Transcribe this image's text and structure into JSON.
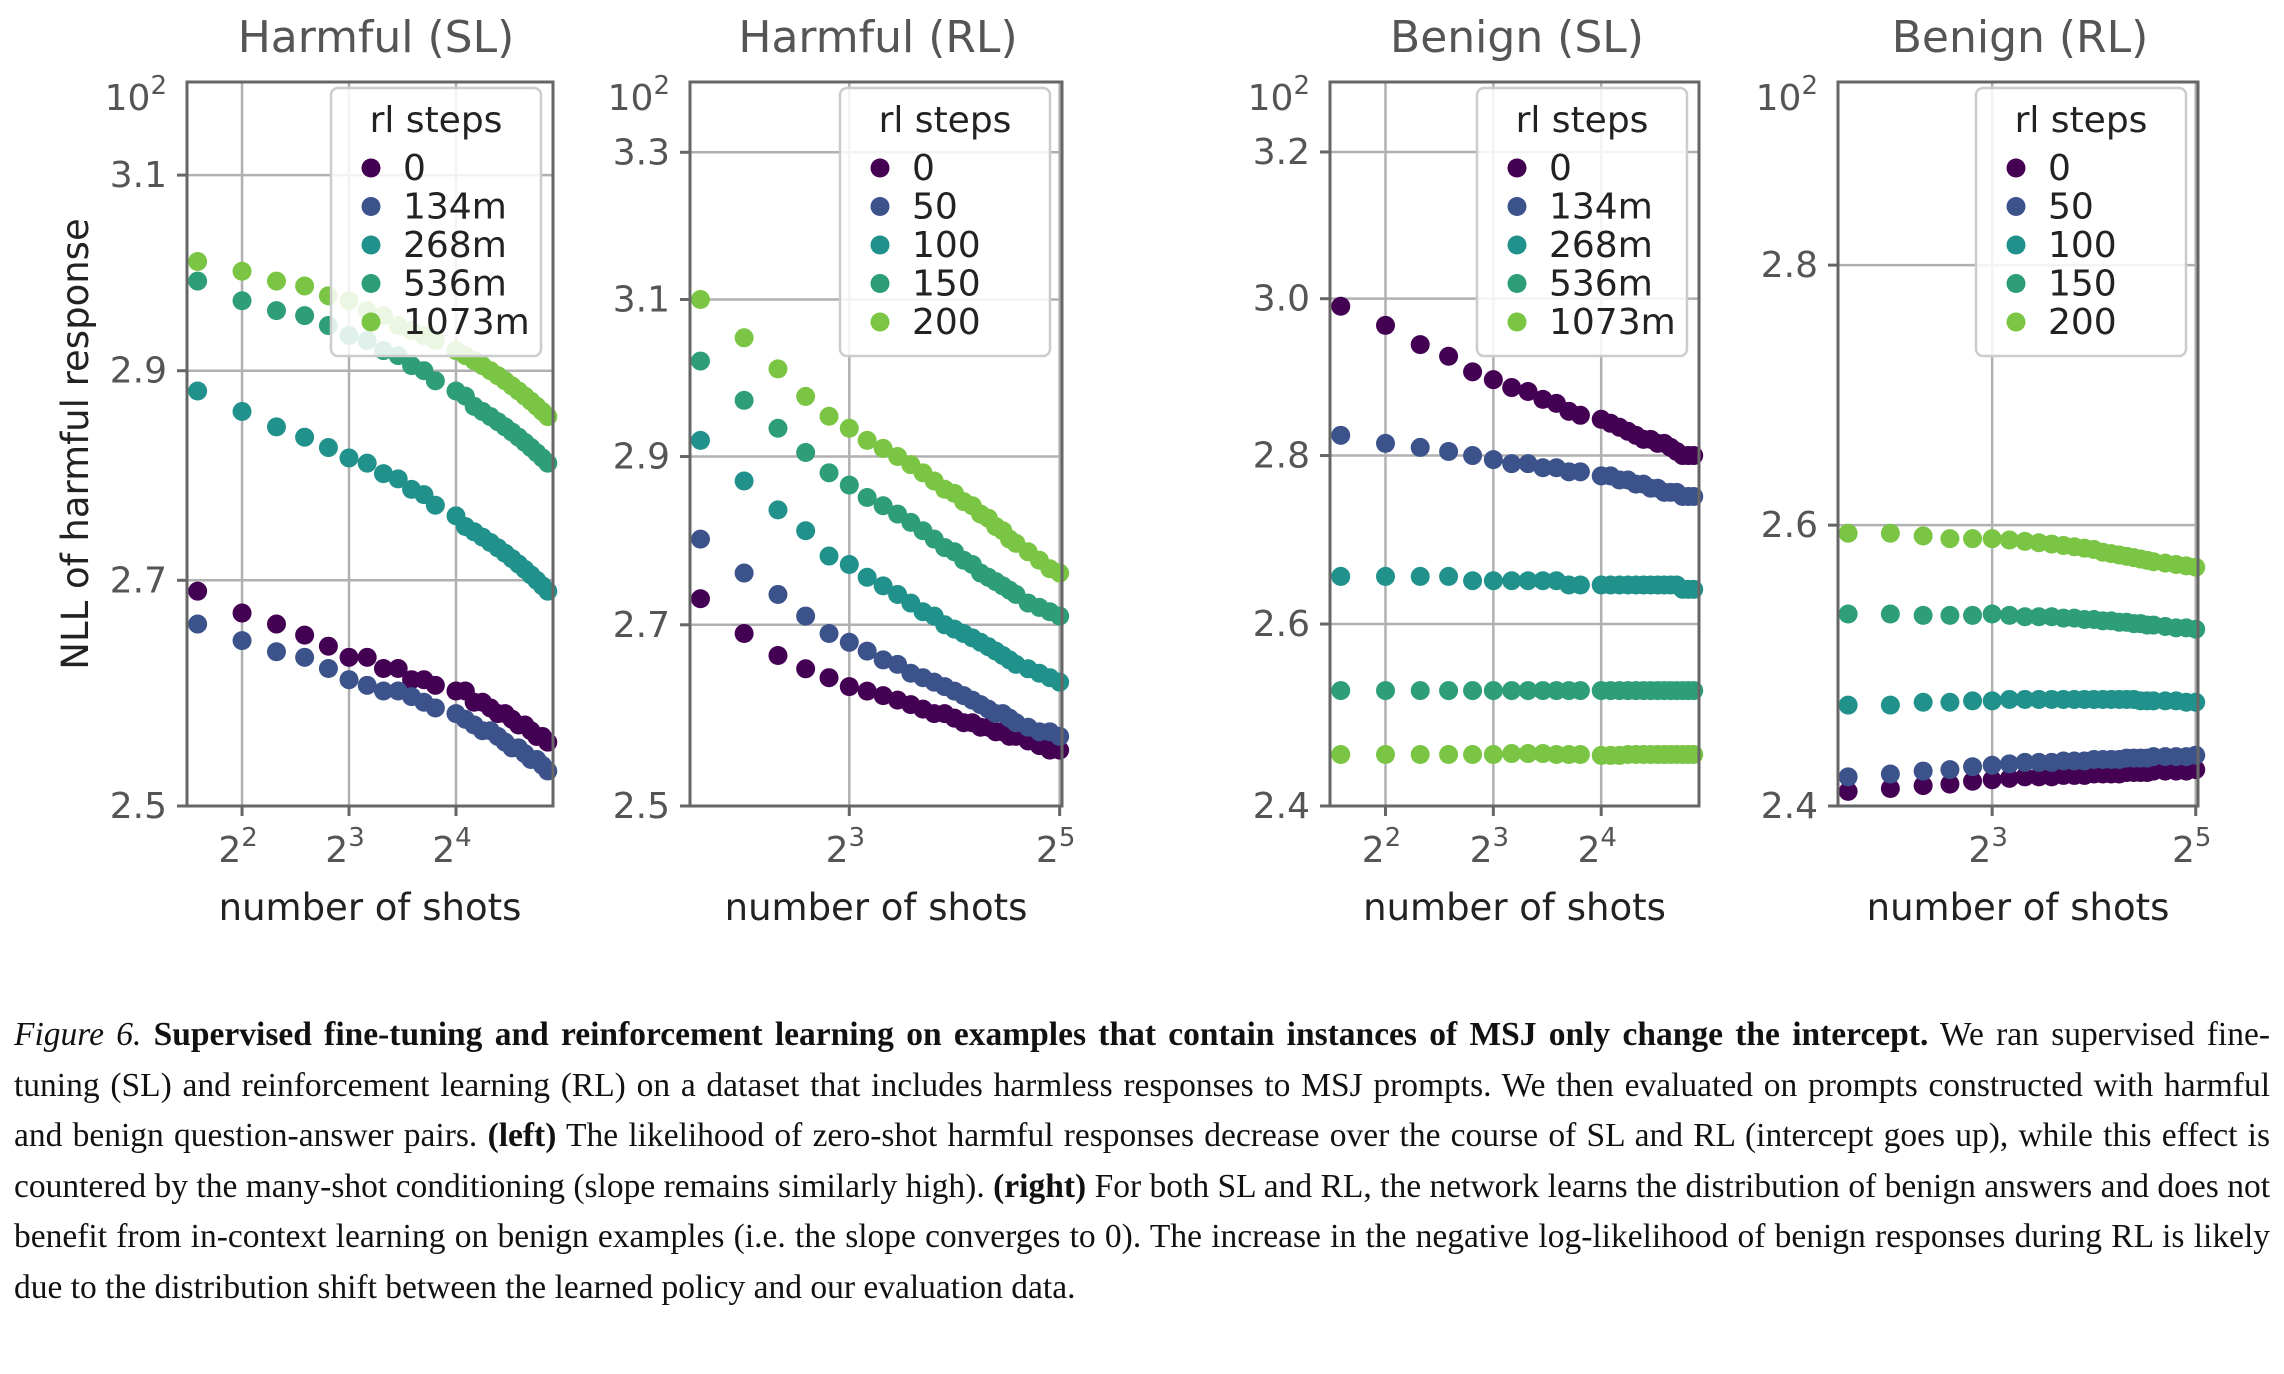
{
  "chart_data": [
    {
      "type": "scatter",
      "title": "Harmful (SL)",
      "xlabel": "number of shots",
      "ylabel": "NLL of harmful response",
      "xscale": "log2",
      "yscale": "log",
      "xlim": [
        2.8,
        30
      ],
      "ylim": [
        2.5,
        3.2
      ],
      "xticks": [
        {
          "value": 4,
          "base": "2",
          "exp": "2"
        },
        {
          "value": 8,
          "base": "2",
          "exp": "3"
        },
        {
          "value": 16,
          "base": "2",
          "exp": "4"
        }
      ],
      "yticks": [
        {
          "value": 2.5,
          "label": "2.5"
        },
        {
          "value": 2.7,
          "label": "2.7"
        },
        {
          "value": 2.9,
          "label": "2.9"
        },
        {
          "value": 3.1,
          "label": "3.1"
        }
      ],
      "ytop_label": {
        "base": "10",
        "exp": "2"
      },
      "grid": true,
      "legend": {
        "title": "rl steps",
        "placement": "top-right"
      },
      "x": [
        3.0,
        4.0,
        5.0,
        6.0,
        7.0,
        8.0,
        9.0,
        10.0,
        11.0,
        12.0,
        13.0,
        14.0,
        16.0,
        17.0,
        18.0,
        19.0,
        20.0,
        21.0,
        22.0,
        23.0,
        24.0,
        25.0,
        26.0,
        27.0,
        28.0,
        29.0
      ],
      "series": [
        {
          "name": "0",
          "color": "#440154",
          "values": [
            2.69,
            2.67,
            2.66,
            2.65,
            2.64,
            2.63,
            2.63,
            2.62,
            2.62,
            2.61,
            2.61,
            2.605,
            2.6,
            2.6,
            2.59,
            2.59,
            2.585,
            2.58,
            2.58,
            2.575,
            2.57,
            2.57,
            2.565,
            2.56,
            2.56,
            2.555
          ]
        },
        {
          "name": "134m",
          "color": "#3b528b",
          "values": [
            2.66,
            2.645,
            2.635,
            2.63,
            2.62,
            2.61,
            2.605,
            2.6,
            2.6,
            2.595,
            2.59,
            2.585,
            2.58,
            2.575,
            2.57,
            2.565,
            2.565,
            2.56,
            2.555,
            2.55,
            2.55,
            2.545,
            2.54,
            2.54,
            2.535,
            2.53
          ]
        },
        {
          "name": "268m",
          "color": "#21918c",
          "values": [
            2.88,
            2.86,
            2.845,
            2.835,
            2.825,
            2.815,
            2.81,
            2.8,
            2.795,
            2.785,
            2.78,
            2.77,
            2.76,
            2.75,
            2.745,
            2.74,
            2.735,
            2.73,
            2.725,
            2.72,
            2.715,
            2.71,
            2.705,
            2.7,
            2.695,
            2.69
          ]
        },
        {
          "name": "536m",
          "color": "#2e9e78",
          "values": [
            2.99,
            2.97,
            2.96,
            2.955,
            2.945,
            2.935,
            2.93,
            2.92,
            2.915,
            2.905,
            2.9,
            2.89,
            2.88,
            2.875,
            2.865,
            2.86,
            2.855,
            2.85,
            2.845,
            2.84,
            2.835,
            2.83,
            2.825,
            2.82,
            2.815,
            2.81
          ]
        },
        {
          "name": "1073m",
          "color": "#7ac644",
          "values": [
            3.01,
            3.0,
            2.99,
            2.985,
            2.975,
            2.97,
            2.96,
            2.955,
            2.945,
            2.94,
            2.935,
            2.93,
            2.92,
            2.915,
            2.91,
            2.905,
            2.9,
            2.895,
            2.89,
            2.885,
            2.88,
            2.875,
            2.87,
            2.865,
            2.86,
            2.855
          ]
        }
      ]
    },
    {
      "type": "scatter",
      "title": "Harmful (RL)",
      "xlabel": "number of shots",
      "ylabel": "",
      "xscale": "log2",
      "yscale": "log",
      "xlim": [
        2.8,
        32.5
      ],
      "ylim": [
        2.5,
        3.4
      ],
      "xticks": [
        {
          "value": 8,
          "base": "2",
          "exp": "3"
        },
        {
          "value": 32,
          "base": "2",
          "exp": "5"
        }
      ],
      "yticks": [
        {
          "value": 2.5,
          "label": "2.5"
        },
        {
          "value": 2.7,
          "label": "2.7"
        },
        {
          "value": 2.9,
          "label": "2.9"
        },
        {
          "value": 3.1,
          "label": "3.1"
        },
        {
          "value": 3.3,
          "label": "3.3"
        }
      ],
      "ytop_label": {
        "base": "10",
        "exp": "2"
      },
      "grid": true,
      "legend": {
        "title": "rl steps",
        "placement": "top-right"
      },
      "x": [
        3.0,
        4.0,
        5.0,
        6.0,
        7.0,
        8.0,
        9.0,
        10.0,
        11.0,
        12.0,
        13.0,
        14.0,
        15.0,
        16.0,
        17.0,
        18.0,
        19.0,
        20.0,
        21.0,
        22.0,
        23.0,
        24.0,
        26.0,
        28.0,
        30.0,
        32.0
      ],
      "series": [
        {
          "name": "0",
          "color": "#440154",
          "values": [
            2.73,
            2.69,
            2.665,
            2.65,
            2.64,
            2.63,
            2.625,
            2.62,
            2.615,
            2.61,
            2.605,
            2.6,
            2.6,
            2.595,
            2.59,
            2.59,
            2.585,
            2.585,
            2.58,
            2.58,
            2.575,
            2.575,
            2.57,
            2.565,
            2.56,
            2.56
          ]
        },
        {
          "name": "50",
          "color": "#3b528b",
          "values": [
            2.8,
            2.76,
            2.735,
            2.71,
            2.69,
            2.68,
            2.67,
            2.66,
            2.655,
            2.645,
            2.64,
            2.635,
            2.63,
            2.625,
            2.62,
            2.615,
            2.61,
            2.605,
            2.6,
            2.6,
            2.595,
            2.59,
            2.585,
            2.58,
            2.58,
            2.575
          ]
        },
        {
          "name": "100",
          "color": "#21918c",
          "values": [
            2.92,
            2.87,
            2.835,
            2.81,
            2.78,
            2.77,
            2.755,
            2.745,
            2.735,
            2.725,
            2.715,
            2.71,
            2.7,
            2.695,
            2.69,
            2.685,
            2.68,
            2.675,
            2.67,
            2.665,
            2.66,
            2.655,
            2.65,
            2.645,
            2.64,
            2.635
          ]
        },
        {
          "name": "150",
          "color": "#2e9e78",
          "values": [
            3.02,
            2.97,
            2.935,
            2.905,
            2.88,
            2.865,
            2.85,
            2.84,
            2.83,
            2.82,
            2.81,
            2.8,
            2.79,
            2.785,
            2.775,
            2.77,
            2.76,
            2.755,
            2.75,
            2.745,
            2.74,
            2.735,
            2.725,
            2.72,
            2.715,
            2.71
          ]
        },
        {
          "name": "200",
          "color": "#7ac644",
          "values": [
            3.1,
            3.05,
            3.01,
            2.975,
            2.95,
            2.935,
            2.92,
            2.91,
            2.9,
            2.89,
            2.88,
            2.87,
            2.86,
            2.855,
            2.845,
            2.84,
            2.83,
            2.825,
            2.815,
            2.81,
            2.8,
            2.795,
            2.785,
            2.775,
            2.765,
            2.76
          ]
        }
      ]
    },
    {
      "type": "scatter",
      "title": "Benign (SL)",
      "xlabel": "number of shots",
      "ylabel": "",
      "xscale": "log2",
      "yscale": "log",
      "xlim": [
        2.8,
        30
      ],
      "ylim": [
        2.4,
        3.3
      ],
      "xticks": [
        {
          "value": 4,
          "base": "2",
          "exp": "2"
        },
        {
          "value": 8,
          "base": "2",
          "exp": "3"
        },
        {
          "value": 16,
          "base": "2",
          "exp": "4"
        }
      ],
      "yticks": [
        {
          "value": 2.4,
          "label": "2.4"
        },
        {
          "value": 2.6,
          "label": "2.6"
        },
        {
          "value": 2.8,
          "label": "2.8"
        },
        {
          "value": 3.0,
          "label": "3.0"
        },
        {
          "value": 3.2,
          "label": "3.2"
        }
      ],
      "ytop_label": {
        "base": "10",
        "exp": "2"
      },
      "grid": true,
      "legend": {
        "title": "rl steps",
        "placement": "top-right"
      },
      "x": [
        3.0,
        4.0,
        5.0,
        6.0,
        7.0,
        8.0,
        9.0,
        10.0,
        11.0,
        12.0,
        13.0,
        14.0,
        16.0,
        17.0,
        18.0,
        19.0,
        20.0,
        21.0,
        22.0,
        23.0,
        24.0,
        25.0,
        26.0,
        27.0,
        28.0,
        29.0
      ],
      "series": [
        {
          "name": "0",
          "color": "#440154",
          "values": [
            2.99,
            2.965,
            2.94,
            2.925,
            2.905,
            2.895,
            2.885,
            2.88,
            2.87,
            2.865,
            2.855,
            2.85,
            2.845,
            2.84,
            2.835,
            2.83,
            2.825,
            2.82,
            2.82,
            2.815,
            2.815,
            2.81,
            2.805,
            2.8,
            2.8,
            2.8
          ]
        },
        {
          "name": "134m",
          "color": "#3b528b",
          "values": [
            2.825,
            2.815,
            2.81,
            2.805,
            2.8,
            2.795,
            2.79,
            2.79,
            2.785,
            2.785,
            2.78,
            2.78,
            2.775,
            2.775,
            2.77,
            2.77,
            2.765,
            2.765,
            2.76,
            2.76,
            2.755,
            2.755,
            2.755,
            2.75,
            2.75,
            2.75
          ]
        },
        {
          "name": "268m",
          "color": "#21918c",
          "values": [
            2.655,
            2.655,
            2.655,
            2.655,
            2.65,
            2.65,
            2.65,
            2.65,
            2.65,
            2.65,
            2.645,
            2.645,
            2.645,
            2.645,
            2.645,
            2.645,
            2.645,
            2.645,
            2.645,
            2.645,
            2.645,
            2.645,
            2.645,
            2.64,
            2.64,
            2.64
          ]
        },
        {
          "name": "536m",
          "color": "#2e9e78",
          "values": [
            2.525,
            2.525,
            2.525,
            2.525,
            2.525,
            2.525,
            2.525,
            2.525,
            2.525,
            2.525,
            2.525,
            2.525,
            2.525,
            2.525,
            2.525,
            2.525,
            2.525,
            2.525,
            2.525,
            2.525,
            2.525,
            2.525,
            2.525,
            2.525,
            2.525,
            2.525
          ]
        },
        {
          "name": "1073m",
          "color": "#7ac644",
          "values": [
            2.455,
            2.455,
            2.455,
            2.455,
            2.455,
            2.455,
            2.456,
            2.456,
            2.456,
            2.455,
            2.455,
            2.455,
            2.454,
            2.454,
            2.454,
            2.455,
            2.455,
            2.455,
            2.455,
            2.455,
            2.455,
            2.455,
            2.455,
            2.455,
            2.455,
            2.455
          ]
        }
      ]
    },
    {
      "type": "scatter",
      "title": "Benign (RL)",
      "xlabel": "number of shots",
      "ylabel": "",
      "xscale": "log2",
      "yscale": "log",
      "xlim": [
        2.8,
        32.5
      ],
      "ylim": [
        2.4,
        2.95
      ],
      "xticks": [
        {
          "value": 8,
          "base": "2",
          "exp": "3"
        },
        {
          "value": 32,
          "base": "2",
          "exp": "5"
        }
      ],
      "yticks": [
        {
          "value": 2.4,
          "label": "2.4"
        },
        {
          "value": 2.6,
          "label": "2.6"
        },
        {
          "value": 2.8,
          "label": "2.8"
        }
      ],
      "ytop_label": {
        "base": "10",
        "exp": "2"
      },
      "grid": true,
      "legend": {
        "title": "rl steps",
        "placement": "top-right"
      },
      "x": [
        3.0,
        4.0,
        5.0,
        6.0,
        7.0,
        8.0,
        9.0,
        10.0,
        11.0,
        12.0,
        13.0,
        14.0,
        15.0,
        16.0,
        17.0,
        18.0,
        19.0,
        20.0,
        21.0,
        22.0,
        23.0,
        24.0,
        26.0,
        28.0,
        30.0,
        32.0
      ],
      "series": [
        {
          "name": "0",
          "color": "#440154",
          "values": [
            2.41,
            2.412,
            2.414,
            2.415,
            2.417,
            2.418,
            2.419,
            2.42,
            2.42,
            2.42,
            2.421,
            2.421,
            2.421,
            2.422,
            2.422,
            2.422,
            2.422,
            2.423,
            2.423,
            2.423,
            2.423,
            2.424,
            2.424,
            2.424,
            2.424,
            2.425
          ]
        },
        {
          "name": "50",
          "color": "#3b528b",
          "values": [
            2.42,
            2.422,
            2.424,
            2.425,
            2.427,
            2.428,
            2.429,
            2.43,
            2.43,
            2.43,
            2.431,
            2.431,
            2.431,
            2.432,
            2.432,
            2.432,
            2.432,
            2.433,
            2.433,
            2.433,
            2.433,
            2.434,
            2.434,
            2.434,
            2.434,
            2.435
          ]
        },
        {
          "name": "100",
          "color": "#21918c",
          "values": [
            2.47,
            2.47,
            2.472,
            2.472,
            2.473,
            2.473,
            2.474,
            2.474,
            2.474,
            2.474,
            2.474,
            2.474,
            2.474,
            2.474,
            2.474,
            2.474,
            2.474,
            2.474,
            2.474,
            2.473,
            2.473,
            2.473,
            2.473,
            2.473,
            2.472,
            2.472
          ]
        },
        {
          "name": "150",
          "color": "#2e9e78",
          "values": [
            2.535,
            2.535,
            2.534,
            2.534,
            2.534,
            2.535,
            2.534,
            2.533,
            2.533,
            2.533,
            2.532,
            2.532,
            2.531,
            2.531,
            2.53,
            2.53,
            2.529,
            2.529,
            2.528,
            2.528,
            2.527,
            2.527,
            2.526,
            2.525,
            2.525,
            2.524
          ]
        },
        {
          "name": "200",
          "color": "#7ac644",
          "values": [
            2.594,
            2.594,
            2.592,
            2.59,
            2.59,
            2.59,
            2.589,
            2.588,
            2.587,
            2.586,
            2.585,
            2.584,
            2.583,
            2.582,
            2.58,
            2.579,
            2.578,
            2.577,
            2.576,
            2.575,
            2.574,
            2.573,
            2.572,
            2.571,
            2.57,
            2.569
          ]
        }
      ]
    }
  ],
  "caption": {
    "label": "Figure 6.",
    "headline": "Supervised fine-tuning and reinforcement learning on examples that contain instances of MSJ only change the intercept.",
    "text1": "We ran supervised fine-tuning (SL) and reinforcement learning (RL) on a dataset that includes harmless responses to MSJ prompts. We then evaluated on prompts constructed with harmful and benign question-answer pairs.",
    "left_label": "(left)",
    "text2": "The likelihood of zero-shot harmful responses decrease over the course of SL and RL (intercept goes up), while this effect is countered by the many-shot conditioning (slope remains similarly high).",
    "right_label": "(right)",
    "text3": "For both SL and RL, the network learns the distribution of benign answers and does not benefit from in-context learning on benign examples (i.e. the slope converges to 0). The increase in the negative log-likelihood of benign responses during RL is likely due to the distribution shift between the learned policy and our evaluation data."
  }
}
